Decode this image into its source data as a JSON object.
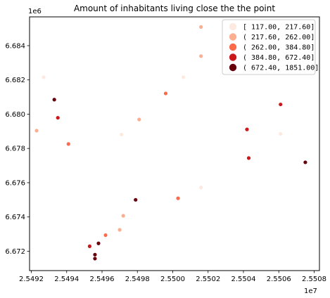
{
  "chart_data": {
    "type": "scatter",
    "title": "Amount of inhabitants living close the the point",
    "xlabel": "",
    "ylabel": "",
    "x_offset_label": "1e7",
    "y_offset_label": "1e6",
    "xlim": [
      2.54919,
      2.55083
    ],
    "ylim": [
      6.67087,
      6.68568
    ],
    "x_ticks": [
      2.5492,
      2.5494,
      2.5496,
      2.5498,
      2.55,
      2.5502,
      2.5504,
      2.5506,
      2.5508
    ],
    "x_tick_labels": [
      "2.5492",
      "2.5494",
      "2.5496",
      "2.5498",
      "2.5500",
      "2.5502",
      "2.5504",
      "2.5506",
      "2.5508"
    ],
    "y_ticks": [
      6.672,
      6.674,
      6.676,
      6.678,
      6.68,
      6.682,
      6.684
    ],
    "y_tick_labels": [
      "6.672",
      "6.674",
      "6.676",
      "6.678",
      "6.680",
      "6.682",
      "6.684"
    ],
    "grid": false,
    "legend_position": "top-right",
    "legend": [
      {
        "label": "[ 117.00,  217.60]",
        "color": "#fee9e0"
      },
      {
        "label": "( 217.60,  262.00]",
        "color": "#fcae91"
      },
      {
        "label": "( 262.00,  384.80]",
        "color": "#fb6a4a"
      },
      {
        "label": "( 384.80,  672.40]",
        "color": "#cb181d"
      },
      {
        "label": "( 672.40, 1851.00]",
        "color": "#67000d"
      }
    ],
    "points": [
      {
        "x": 2.54927,
        "y": 6.68216,
        "class": 0
      },
      {
        "x": 2.54971,
        "y": 6.67881,
        "class": 0
      },
      {
        "x": 2.55006,
        "y": 6.68216,
        "class": 0
      },
      {
        "x": 2.55016,
        "y": 6.67572,
        "class": 0
      },
      {
        "x": 2.55061,
        "y": 6.67885,
        "class": 0
      },
      {
        "x": 2.54923,
        "y": 6.67904,
        "class": 1
      },
      {
        "x": 2.54981,
        "y": 6.67969,
        "class": 1
      },
      {
        "x": 2.55016,
        "y": 6.68339,
        "class": 1
      },
      {
        "x": 2.55016,
        "y": 6.68509,
        "class": 1
      },
      {
        "x": 2.54972,
        "y": 6.67407,
        "class": 1
      },
      {
        "x": 2.5497,
        "y": 6.67325,
        "class": 1
      },
      {
        "x": 2.54941,
        "y": 6.67826,
        "class": 2
      },
      {
        "x": 2.54996,
        "y": 6.68121,
        "class": 2
      },
      {
        "x": 2.55003,
        "y": 6.67509,
        "class": 2
      },
      {
        "x": 2.54962,
        "y": 6.67294,
        "class": 2
      },
      {
        "x": 2.54935,
        "y": 6.67979,
        "class": 3
      },
      {
        "x": 2.55042,
        "y": 6.67911,
        "class": 3
      },
      {
        "x": 2.55043,
        "y": 6.67744,
        "class": 3
      },
      {
        "x": 2.55061,
        "y": 6.68057,
        "class": 3
      },
      {
        "x": 2.54953,
        "y": 6.67229,
        "class": 3
      },
      {
        "x": 2.54933,
        "y": 6.68085,
        "class": 4
      },
      {
        "x": 2.54979,
        "y": 6.675,
        "class": 4
      },
      {
        "x": 2.55075,
        "y": 6.67719,
        "class": 4
      },
      {
        "x": 2.54958,
        "y": 6.67246,
        "class": 4
      },
      {
        "x": 2.54956,
        "y": 6.6718,
        "class": 4
      },
      {
        "x": 2.54956,
        "y": 6.67157,
        "class": 4
      }
    ]
  }
}
